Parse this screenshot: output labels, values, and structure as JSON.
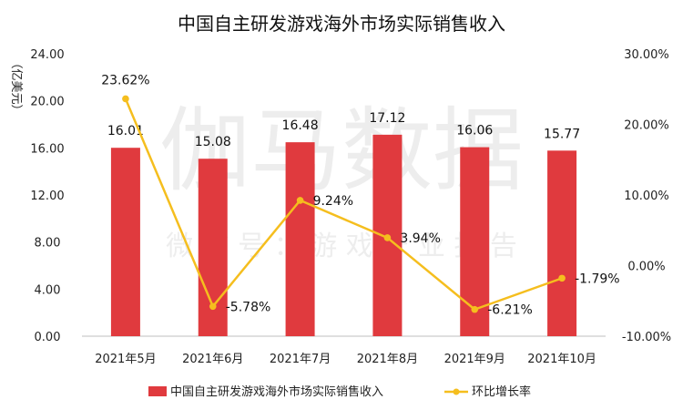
{
  "chart_data": {
    "type": "bar+line",
    "title": "中国自主研发游戏海外市场实际销售收入",
    "ylabel": "（亿美元）",
    "categories": [
      "2021年5月",
      "2021年6月",
      "2021年7月",
      "2021年8月",
      "2021年9月",
      "2021年10月"
    ],
    "y_left": {
      "min": 0,
      "max": 24,
      "step": 4,
      "tick_labels": [
        "0.00",
        "4.00",
        "8.00",
        "12.00",
        "16.00",
        "20.00",
        "24.00"
      ]
    },
    "y_right": {
      "min": -10,
      "max": 30,
      "step": 10,
      "tick_labels": [
        "-10.00%",
        "0.00%",
        "10.00%",
        "20.00%",
        "30.00%"
      ]
    },
    "series": [
      {
        "name": "中国自主研发游戏海外市场实际销售收入",
        "type": "bar",
        "axis": "left",
        "color": "#E03A3E",
        "values": [
          16.01,
          15.08,
          16.48,
          17.12,
          16.06,
          15.77
        ],
        "labels": [
          "16.01",
          "15.08",
          "16.48",
          "17.12",
          "16.06",
          "15.77"
        ]
      },
      {
        "name": "环比增长率",
        "type": "line",
        "axis": "right",
        "color": "#F5BE1E",
        "values": [
          23.62,
          -5.78,
          9.24,
          3.94,
          -6.21,
          -1.79
        ],
        "labels": [
          "23.62%",
          "-5.78%",
          "9.24%",
          "3.94%",
          "-6.21%",
          "-1.79%"
        ]
      }
    ],
    "legend_position": "bottom",
    "grid": false
  },
  "watermark": {
    "main": "伽马数据",
    "sub": "微 信 号 ： 游 戏 产 业 报 告"
  }
}
